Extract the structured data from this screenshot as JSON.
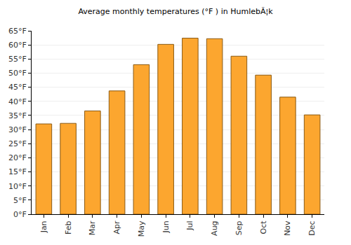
{
  "chart_data": {
    "type": "bar",
    "title": "Average monthly temperatures (°F ) in HumlebÃ¦k",
    "categories": [
      "Jan",
      "Feb",
      "Mar",
      "Apr",
      "May",
      "Jun",
      "Jul",
      "Aug",
      "Sep",
      "Oct",
      "Nov",
      "Dec"
    ],
    "values": [
      32,
      32.2,
      36.6,
      43.7,
      53,
      60.2,
      62.4,
      62.2,
      56,
      49.3,
      41.5,
      35.2
    ],
    "color": "#fca62f",
    "ylim": [
      0,
      65
    ],
    "yticks": [
      {
        "value": 0,
        "label": "0°F"
      },
      {
        "value": 5,
        "label": "5°F"
      },
      {
        "value": 10,
        "label": "10°F"
      },
      {
        "value": 15,
        "label": "15°F"
      },
      {
        "value": 20,
        "label": "20°F"
      },
      {
        "value": 25,
        "label": "25°F"
      },
      {
        "value": 30,
        "label": "30°F"
      },
      {
        "value": 35,
        "label": "35°F"
      },
      {
        "value": 40,
        "label": "40°F"
      },
      {
        "value": 45,
        "label": "45°F"
      },
      {
        "value": 50,
        "label": "50°F"
      },
      {
        "value": 55,
        "label": "55°F"
      },
      {
        "value": 60,
        "label": "60°F"
      },
      {
        "value": 65,
        "label": "65°F"
      }
    ],
    "grid": true
  }
}
